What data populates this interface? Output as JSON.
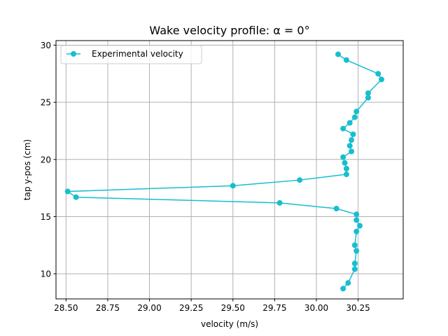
{
  "chart_data": {
    "type": "line",
    "title": "Wake velocity profile: α = 0°",
    "xlabel": "velocity (m/s)",
    "ylabel": "tap y-pos (cm)",
    "xlim": [
      28.44,
      30.52
    ],
    "ylim": [
      7.8,
      30.4
    ],
    "xticks": [
      28.5,
      28.75,
      29.0,
      29.25,
      29.5,
      29.75,
      30.0,
      30.25
    ],
    "xtick_labels": [
      "28.50",
      "28.75",
      "29.00",
      "29.25",
      "29.50",
      "29.75",
      "30.00",
      "30.25"
    ],
    "yticks": [
      10,
      15,
      20,
      25,
      30
    ],
    "ytick_labels": [
      "10",
      "15",
      "20",
      "25",
      "30"
    ],
    "grid": true,
    "legend_position": "top-left",
    "series": [
      {
        "name": "Experimental velocity",
        "color": "#17becf",
        "marker": "circle",
        "points": [
          {
            "x": 30.13,
            "y": 29.2
          },
          {
            "x": 30.18,
            "y": 28.7
          },
          {
            "x": 30.37,
            "y": 27.5
          },
          {
            "x": 30.39,
            "y": 27.0
          },
          {
            "x": 30.31,
            "y": 25.8
          },
          {
            "x": 30.31,
            "y": 25.4
          },
          {
            "x": 30.24,
            "y": 24.2
          },
          {
            "x": 30.23,
            "y": 23.7
          },
          {
            "x": 30.2,
            "y": 23.2
          },
          {
            "x": 30.16,
            "y": 22.7
          },
          {
            "x": 30.22,
            "y": 22.2
          },
          {
            "x": 30.21,
            "y": 21.7
          },
          {
            "x": 30.2,
            "y": 21.2
          },
          {
            "x": 30.21,
            "y": 20.7
          },
          {
            "x": 30.16,
            "y": 20.2
          },
          {
            "x": 30.17,
            "y": 19.7
          },
          {
            "x": 30.18,
            "y": 19.2
          },
          {
            "x": 30.18,
            "y": 18.7
          },
          {
            "x": 29.9,
            "y": 18.2
          },
          {
            "x": 29.5,
            "y": 17.7
          },
          {
            "x": 28.51,
            "y": 17.2
          },
          {
            "x": 28.56,
            "y": 16.7
          },
          {
            "x": 29.78,
            "y": 16.2
          },
          {
            "x": 30.12,
            "y": 15.7
          },
          {
            "x": 30.24,
            "y": 15.2
          },
          {
            "x": 30.24,
            "y": 14.7
          },
          {
            "x": 30.26,
            "y": 14.2
          },
          {
            "x": 30.24,
            "y": 13.7
          },
          {
            "x": 30.23,
            "y": 12.5
          },
          {
            "x": 30.24,
            "y": 12.0
          },
          {
            "x": 30.23,
            "y": 10.9
          },
          {
            "x": 30.23,
            "y": 10.4
          },
          {
            "x": 30.19,
            "y": 9.2
          },
          {
            "x": 30.16,
            "y": 8.7
          }
        ]
      }
    ]
  }
}
